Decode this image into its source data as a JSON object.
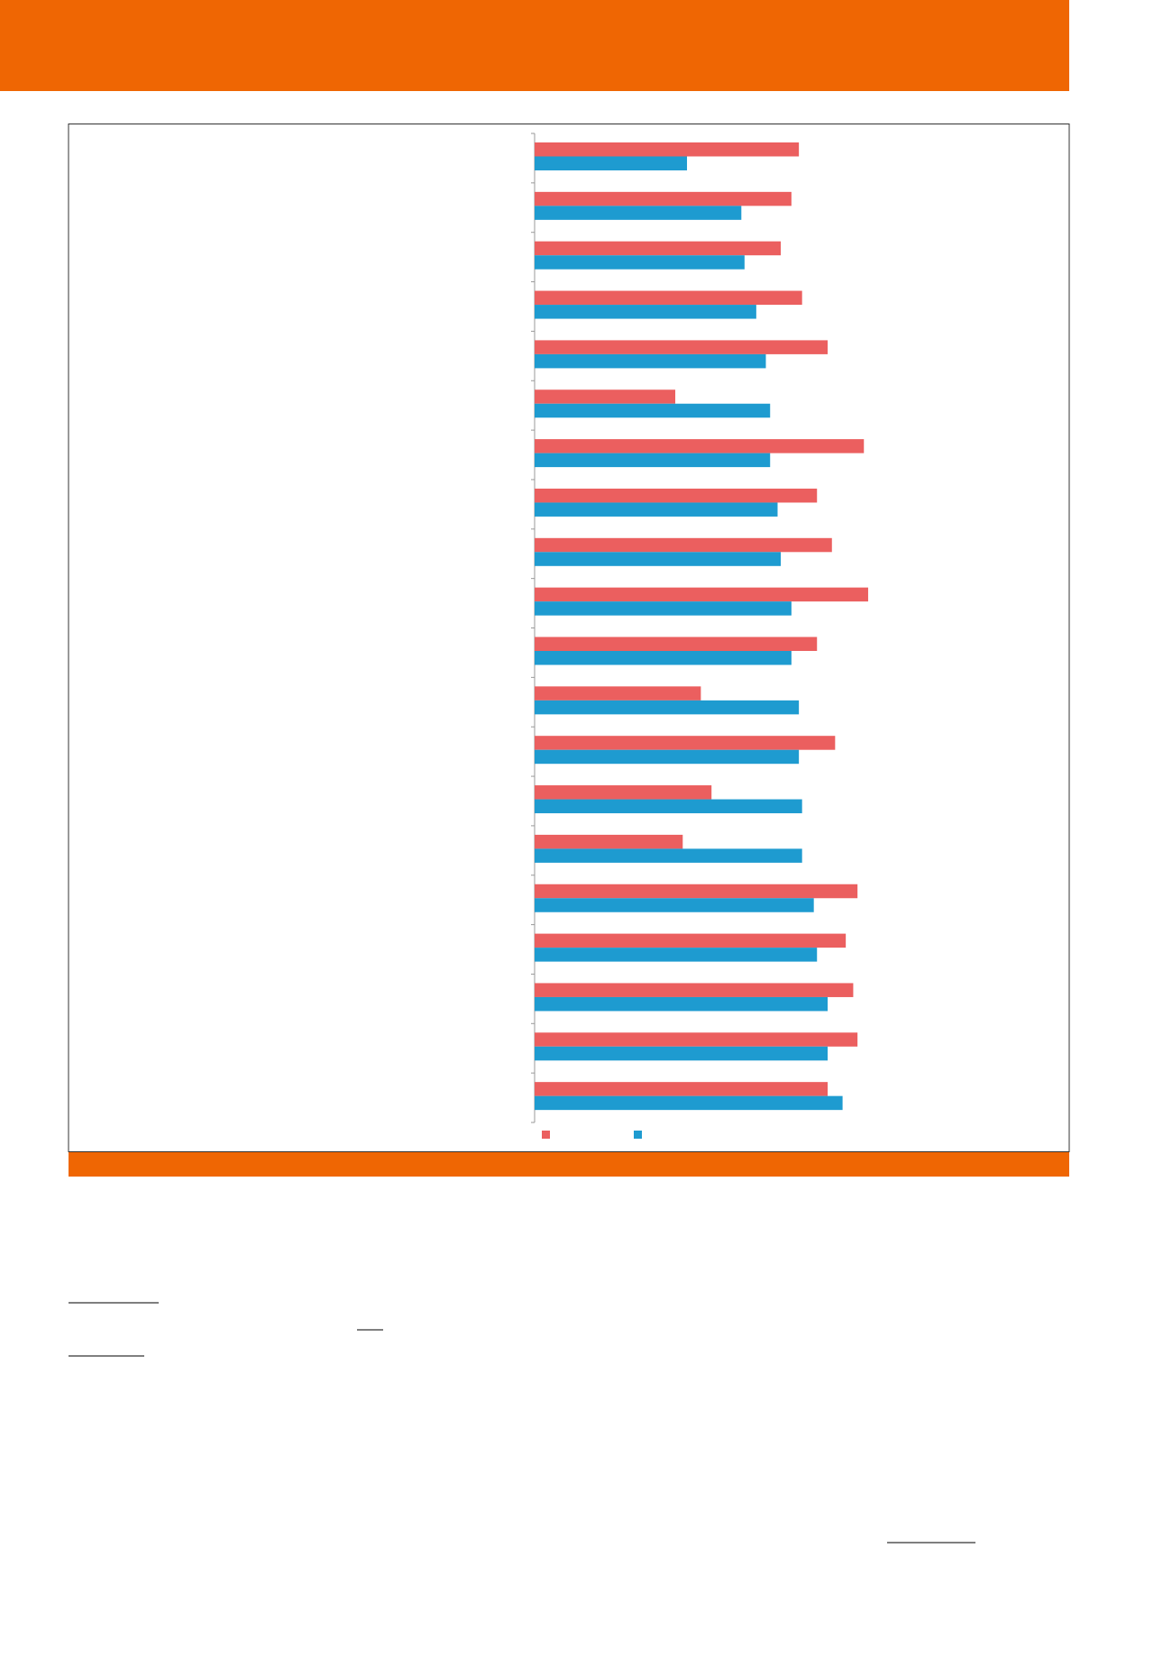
{
  "chart_data": {
    "type": "bar",
    "orientation": "horizontal",
    "legend": "bottom",
    "categories": [
      null,
      null,
      null,
      null,
      null,
      null,
      null,
      null,
      null,
      null,
      null,
      null,
      null,
      null,
      null,
      null,
      null,
      null,
      null,
      null
    ],
    "xlim": [
      0,
      100
    ],
    "series": [
      {
        "color": "#eb5f5f",
        "values": [
          49.6,
          48.2,
          46.2,
          50.2,
          55,
          26.4,
          61.8,
          53,
          55.8,
          62.6,
          53,
          31.2,
          56.4,
          33.2,
          27.8,
          60.6,
          58.4,
          59.8,
          60.6,
          55
        ]
      },
      {
        "color": "#1e9bd0",
        "values": [
          28.6,
          38.8,
          39.4,
          41.6,
          43.4,
          44.2,
          44.2,
          45.6,
          46.2,
          48.2,
          48.2,
          49.6,
          49.6,
          50.2,
          50.2,
          52.4,
          53,
          55,
          55,
          57.8
        ]
      }
    ]
  }
}
